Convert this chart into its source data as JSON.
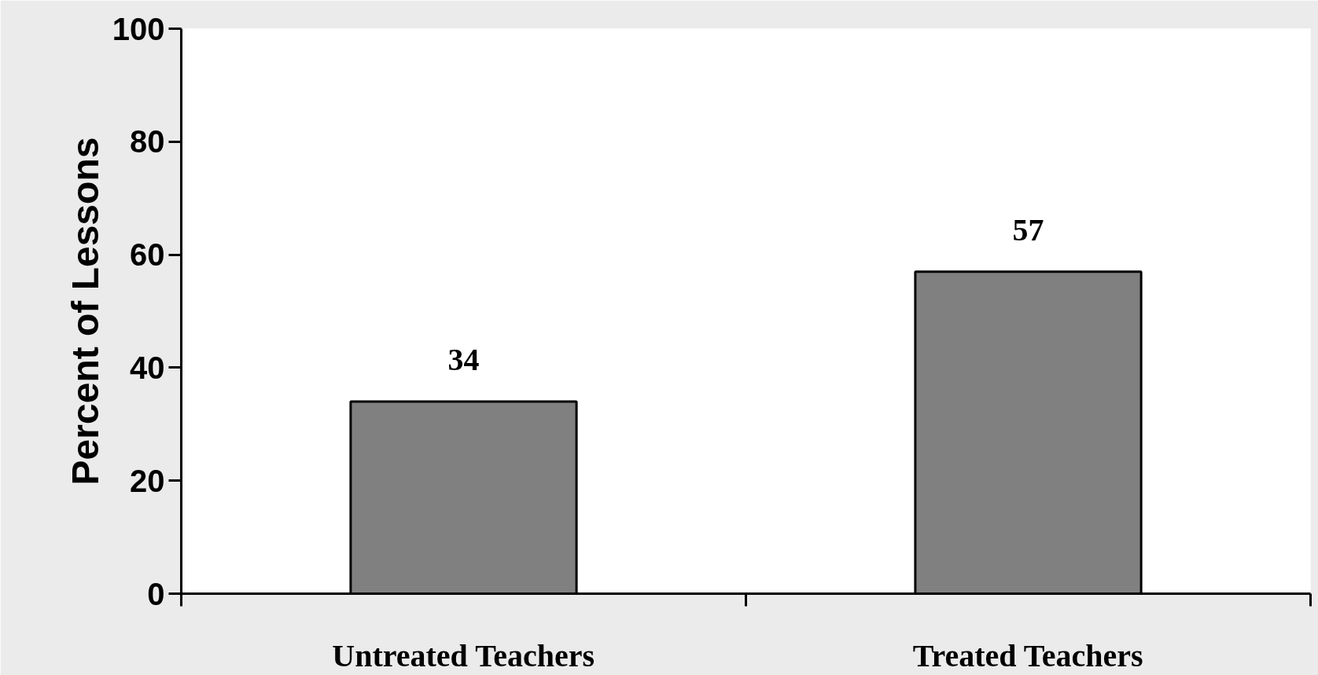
{
  "chart_data": {
    "type": "bar",
    "ylabel": "Percent of Lessons",
    "categories": [
      "Untreated Teachers",
      "Treated Teachers"
    ],
    "values": [
      34,
      57
    ],
    "color": "#808080",
    "ylim": [
      0,
      100
    ],
    "yticks": [
      0,
      20,
      40,
      60,
      80,
      100
    ],
    "data_labels": true,
    "grid": false
  }
}
